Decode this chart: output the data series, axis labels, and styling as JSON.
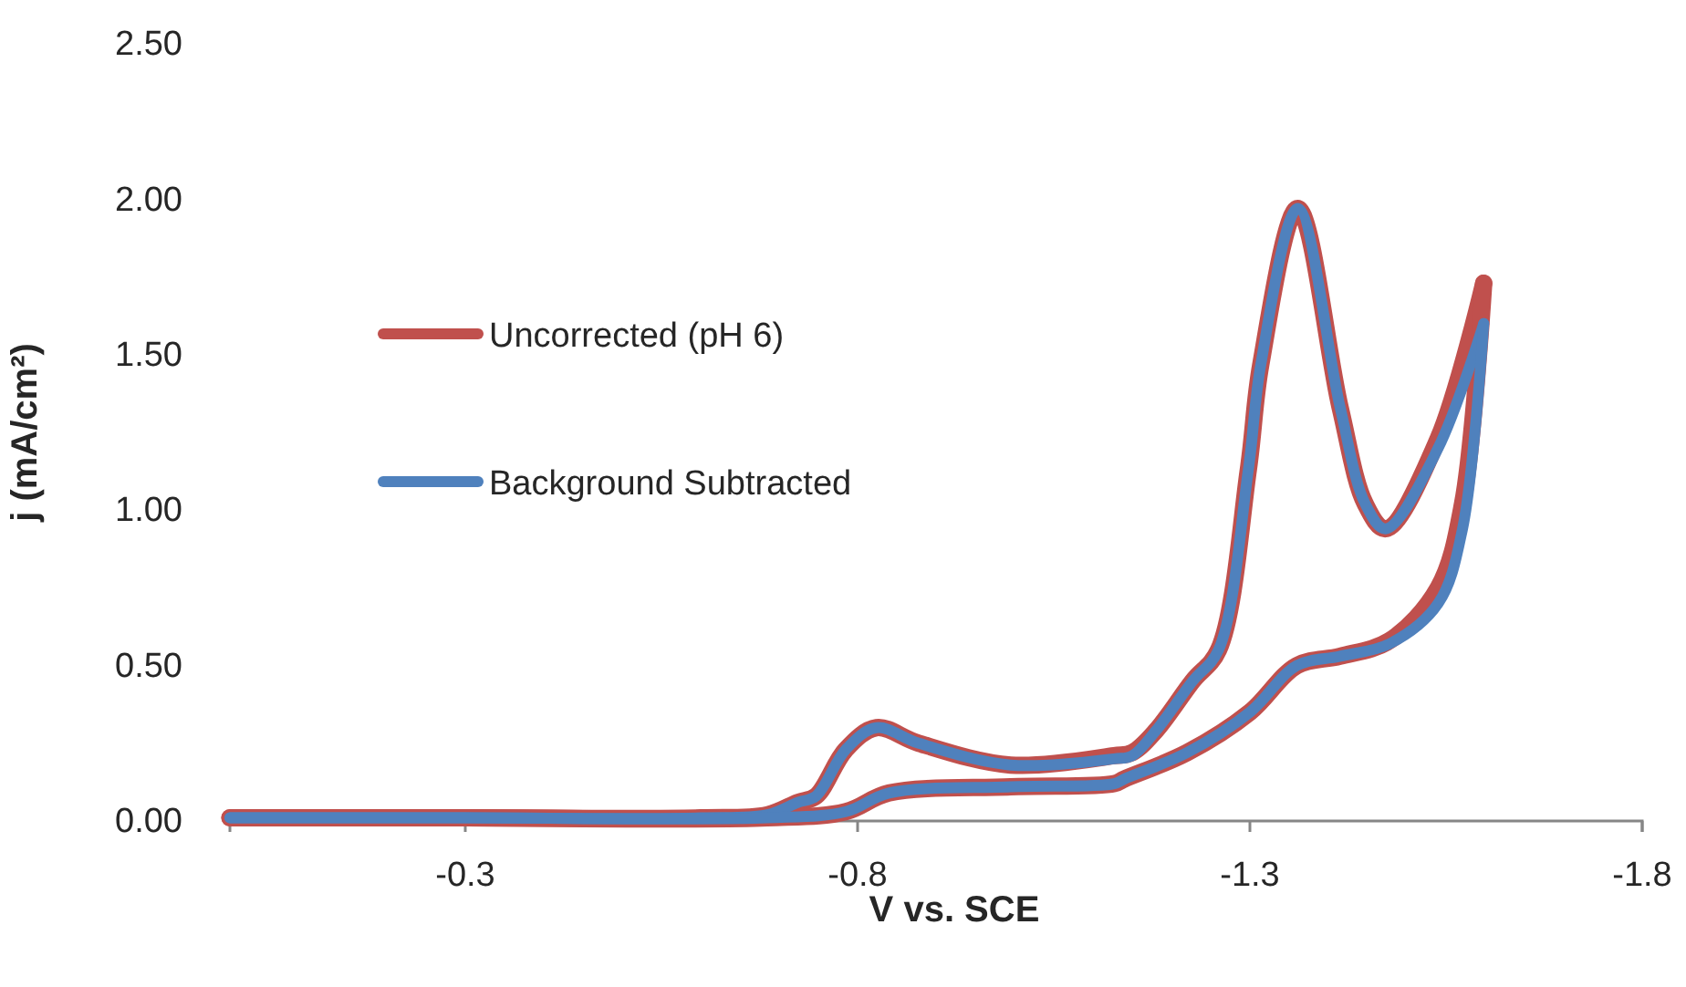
{
  "chart_data": {
    "type": "line",
    "xlabel": "V vs. SCE",
    "ylabel": "j (mA/cm²)",
    "xlim": [
      0,
      -1.8
    ],
    "xticks": [
      -0.3,
      -0.8,
      -1.3,
      -1.8
    ],
    "ylim": [
      0,
      2.5
    ],
    "yticks": [
      {
        "value": 0,
        "label": "0.00"
      },
      {
        "value": 0.5,
        "label": "0.50"
      },
      {
        "value": 1,
        "label": "1.00"
      },
      {
        "value": 1.5,
        "label": "1.50"
      },
      {
        "value": 2,
        "label": "2.00"
      },
      {
        "value": 2.5,
        "label": "2.50"
      }
    ],
    "grid": false,
    "legend": "left",
    "line_style": "solid",
    "marker": "none",
    "series": [
      {
        "name": "Uncorrected (pH 6)",
        "color": "#c0504d",
        "x": [
          0,
          -0.3,
          -0.6,
          -0.685,
          -0.724,
          -0.747,
          -0.785,
          -0.824,
          -0.878,
          -0.995,
          -1.127,
          -1.15,
          -1.18,
          -1.227,
          -1.26,
          -1.298,
          -1.314,
          -1.361,
          -1.415,
          -1.447,
          -1.473,
          -1.54,
          -1.598
        ],
        "values": [
          0.01,
          0.01,
          0.01,
          0.02,
          0.06,
          0.08,
          0.23,
          0.3,
          0.25,
          0.18,
          0.21,
          0.22,
          0.29,
          0.45,
          0.55,
          1.13,
          1.47,
          1.97,
          1.33,
          1.02,
          0.94,
          1.23,
          1.73
        ]
      },
      {
        "color": "#c0504d",
        "x": [
          -1.598,
          -1.571,
          -1.54,
          -1.478,
          -1.415,
          -1.36,
          -1.3,
          -1.22,
          -1.14,
          -1.127,
          -0.995,
          -0.84,
          -0.785,
          -0.685,
          -0.3,
          0
        ],
        "values": [
          1.73,
          1.02,
          0.75,
          0.58,
          0.53,
          0.5,
          0.35,
          0.22,
          0.135,
          0.12,
          0.11,
          0.09,
          0.03,
          0.01,
          0.01,
          0.01
        ]
      },
      {
        "name": "Background Subtracted",
        "color": "#4f81bd",
        "x": [
          0,
          -0.3,
          -0.6,
          -0.685,
          -0.724,
          -0.747,
          -0.785,
          -0.824,
          -0.878,
          -0.995,
          -1.127,
          -1.15,
          -1.18,
          -1.227,
          -1.26,
          -1.298,
          -1.314,
          -1.361,
          -1.415,
          -1.447,
          -1.473,
          -1.54,
          -1.598
        ],
        "values": [
          0.01,
          0.01,
          0.01,
          0.02,
          0.06,
          0.08,
          0.23,
          0.3,
          0.25,
          0.18,
          0.2,
          0.21,
          0.29,
          0.45,
          0.55,
          1.13,
          1.47,
          1.97,
          1.33,
          1.02,
          0.94,
          1.2,
          1.6
        ]
      },
      {
        "color": "#4f81bd",
        "x": [
          -1.598,
          -1.571,
          -1.54,
          -1.478,
          -1.415,
          -1.36,
          -1.3,
          -1.22,
          -1.14,
          -1.127,
          -0.995,
          -0.84,
          -0.785,
          -0.685,
          -0.3,
          0
        ],
        "values": [
          1.6,
          0.94,
          0.7,
          0.57,
          0.53,
          0.5,
          0.35,
          0.22,
          0.135,
          0.12,
          0.11,
          0.09,
          0.03,
          0.01,
          0.01,
          0.01
        ]
      }
    ]
  }
}
